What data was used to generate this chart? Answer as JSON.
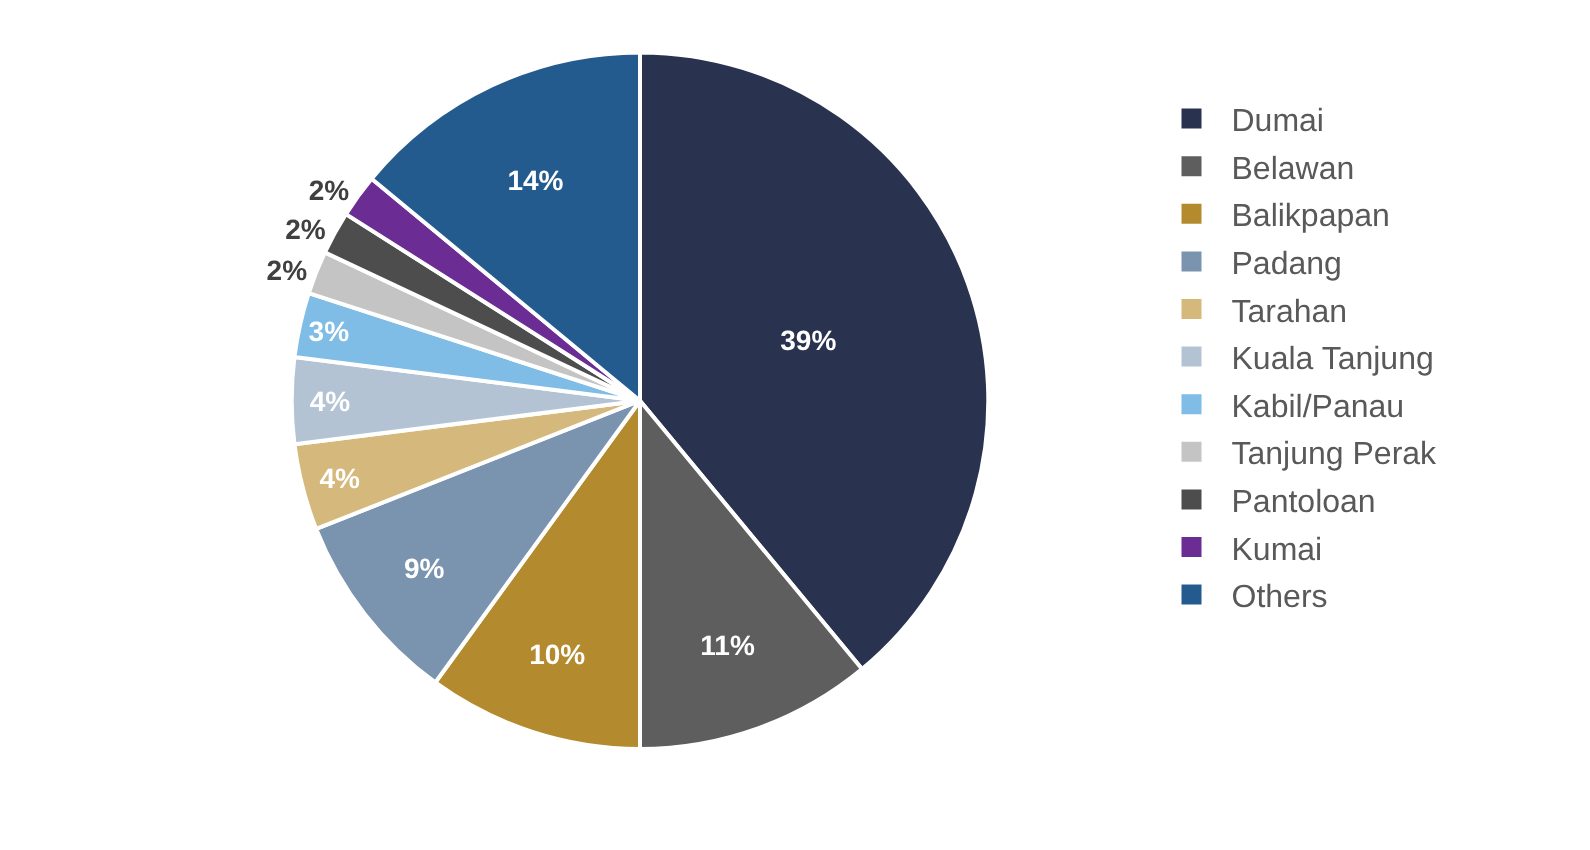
{
  "chart_data": {
    "type": "pie",
    "categories": [
      "Dumai",
      "Belawan",
      "Balikpapan",
      "Padang",
      "Tarahan",
      "Kuala Tanjung",
      "Kabil/Panau",
      "Tanjung Perak",
      "Pantoloan",
      "Kumai",
      "Others"
    ],
    "values": [
      39,
      11,
      10,
      9,
      4,
      4,
      3,
      2,
      2,
      2,
      14
    ],
    "value_labels": [
      "39%",
      "11%",
      "10%",
      "9%",
      "4%",
      "4%",
      "3%",
      "2%",
      "2%",
      "2%",
      "14%"
    ],
    "colors": [
      "#29324f",
      "#5e5e5e",
      "#b38b2e",
      "#7a93ae",
      "#d5b87c",
      "#b3c3d4",
      "#7fbce6",
      "#c4c4c4",
      "#4d4d4d",
      "#6b2c93",
      "#245b8e"
    ],
    "legend": "right"
  }
}
